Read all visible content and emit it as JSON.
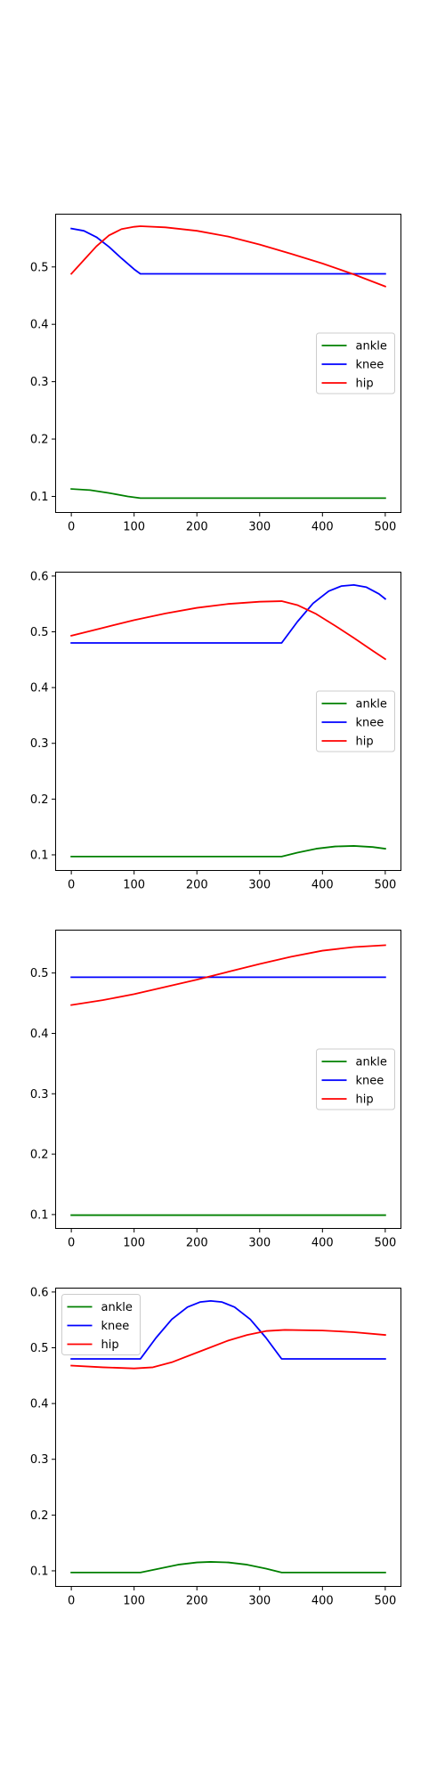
{
  "colors": {
    "ankle": "#008000",
    "knee": "#0000ff",
    "hip": "#ff0000",
    "axes": "#000000",
    "background": "#ffffff"
  },
  "chart_data": [
    {
      "type": "line",
      "xlim": [
        -25,
        525
      ],
      "ylim": [
        0.072,
        0.592
      ],
      "x_ticks": [
        0,
        100,
        200,
        300,
        400,
        500
      ],
      "y_ticks": [
        0.1,
        0.2,
        0.3,
        0.4,
        0.5
      ],
      "grid": false,
      "legend_position": "center-right",
      "series": [
        {
          "name": "ankle",
          "color": "#008000",
          "points": [
            [
              0,
              0.113
            ],
            [
              30,
              0.111
            ],
            [
              60,
              0.106
            ],
            [
              90,
              0.1
            ],
            [
              110,
              0.097
            ],
            [
              500,
              0.097
            ]
          ]
        },
        {
          "name": "knee",
          "color": "#0000ff",
          "points": [
            [
              0,
              0.567
            ],
            [
              20,
              0.563
            ],
            [
              40,
              0.552
            ],
            [
              60,
              0.535
            ],
            [
              80,
              0.515
            ],
            [
              100,
              0.496
            ],
            [
              110,
              0.488
            ],
            [
              500,
              0.488
            ]
          ]
        },
        {
          "name": "hip",
          "color": "#ff0000",
          "points": [
            [
              0,
              0.488
            ],
            [
              20,
              0.512
            ],
            [
              40,
              0.536
            ],
            [
              60,
              0.555
            ],
            [
              80,
              0.566
            ],
            [
              100,
              0.57
            ],
            [
              110,
              0.571
            ],
            [
              150,
              0.569
            ],
            [
              200,
              0.563
            ],
            [
              250,
              0.553
            ],
            [
              300,
              0.539
            ],
            [
              350,
              0.523
            ],
            [
              400,
              0.506
            ],
            [
              450,
              0.487
            ],
            [
              500,
              0.466
            ]
          ]
        }
      ]
    },
    {
      "type": "line",
      "xlim": [
        -25,
        525
      ],
      "ylim": [
        0.072,
        0.607
      ],
      "x_ticks": [
        0,
        100,
        200,
        300,
        400,
        500
      ],
      "y_ticks": [
        0.1,
        0.2,
        0.3,
        0.4,
        0.5,
        0.6
      ],
      "grid": false,
      "legend_position": "center-right",
      "series": [
        {
          "name": "ankle",
          "color": "#008000",
          "points": [
            [
              0,
              0.097
            ],
            [
              335,
              0.097
            ],
            [
              360,
              0.104
            ],
            [
              390,
              0.111
            ],
            [
              420,
              0.115
            ],
            [
              450,
              0.116
            ],
            [
              480,
              0.114
            ],
            [
              500,
              0.111
            ]
          ]
        },
        {
          "name": "knee",
          "color": "#0000ff",
          "points": [
            [
              0,
              0.48
            ],
            [
              335,
              0.48
            ],
            [
              360,
              0.518
            ],
            [
              385,
              0.551
            ],
            [
              410,
              0.573
            ],
            [
              430,
              0.582
            ],
            [
              450,
              0.584
            ],
            [
              470,
              0.58
            ],
            [
              490,
              0.568
            ],
            [
              500,
              0.559
            ]
          ]
        },
        {
          "name": "hip",
          "color": "#ff0000",
          "points": [
            [
              0,
              0.493
            ],
            [
              50,
              0.507
            ],
            [
              100,
              0.521
            ],
            [
              150,
              0.533
            ],
            [
              200,
              0.543
            ],
            [
              250,
              0.55
            ],
            [
              300,
              0.554
            ],
            [
              335,
              0.555
            ],
            [
              360,
              0.548
            ],
            [
              390,
              0.532
            ],
            [
              420,
              0.511
            ],
            [
              450,
              0.489
            ],
            [
              480,
              0.466
            ],
            [
              500,
              0.451
            ]
          ]
        }
      ]
    },
    {
      "type": "line",
      "xlim": [
        -25,
        525
      ],
      "ylim": [
        0.077,
        0.571
      ],
      "x_ticks": [
        0,
        100,
        200,
        300,
        400,
        500
      ],
      "y_ticks": [
        0.1,
        0.2,
        0.3,
        0.4,
        0.5
      ],
      "grid": false,
      "legend_position": "center-right",
      "series": [
        {
          "name": "ankle",
          "color": "#008000",
          "points": [
            [
              0,
              0.099
            ],
            [
              500,
              0.099
            ]
          ]
        },
        {
          "name": "knee",
          "color": "#0000ff",
          "points": [
            [
              0,
              0.493
            ],
            [
              500,
              0.493
            ]
          ]
        },
        {
          "name": "hip",
          "color": "#ff0000",
          "points": [
            [
              0,
              0.447
            ],
            [
              50,
              0.455
            ],
            [
              100,
              0.465
            ],
            [
              150,
              0.477
            ],
            [
              200,
              0.489
            ],
            [
              250,
              0.502
            ],
            [
              300,
              0.515
            ],
            [
              350,
              0.527
            ],
            [
              400,
              0.537
            ],
            [
              450,
              0.543
            ],
            [
              500,
              0.546
            ]
          ]
        }
      ]
    },
    {
      "type": "line",
      "xlim": [
        -25,
        525
      ],
      "ylim": [
        0.072,
        0.607
      ],
      "x_ticks": [
        0,
        100,
        200,
        300,
        400,
        500
      ],
      "y_ticks": [
        0.1,
        0.2,
        0.3,
        0.4,
        0.5,
        0.6
      ],
      "grid": false,
      "legend_position": "top-left",
      "series": [
        {
          "name": "ankle",
          "color": "#008000",
          "points": [
            [
              0,
              0.097
            ],
            [
              110,
              0.097
            ],
            [
              140,
              0.104
            ],
            [
              170,
              0.111
            ],
            [
              200,
              0.115
            ],
            [
              222,
              0.116
            ],
            [
              250,
              0.115
            ],
            [
              280,
              0.111
            ],
            [
              310,
              0.104
            ],
            [
              335,
              0.097
            ],
            [
              500,
              0.097
            ]
          ]
        },
        {
          "name": "knee",
          "color": "#0000ff",
          "points": [
            [
              0,
              0.48
            ],
            [
              110,
              0.48
            ],
            [
              135,
              0.518
            ],
            [
              160,
              0.551
            ],
            [
              185,
              0.573
            ],
            [
              205,
              0.582
            ],
            [
              222,
              0.584
            ],
            [
              240,
              0.582
            ],
            [
              260,
              0.573
            ],
            [
              285,
              0.551
            ],
            [
              310,
              0.518
            ],
            [
              335,
              0.48
            ],
            [
              500,
              0.48
            ]
          ]
        },
        {
          "name": "hip",
          "color": "#ff0000",
          "points": [
            [
              0,
              0.468
            ],
            [
              50,
              0.465
            ],
            [
              100,
              0.463
            ],
            [
              130,
              0.465
            ],
            [
              160,
              0.474
            ],
            [
              190,
              0.487
            ],
            [
              220,
              0.5
            ],
            [
              250,
              0.513
            ],
            [
              280,
              0.523
            ],
            [
              310,
              0.53
            ],
            [
              340,
              0.532
            ],
            [
              400,
              0.531
            ],
            [
              450,
              0.528
            ],
            [
              500,
              0.523
            ]
          ]
        }
      ]
    }
  ]
}
